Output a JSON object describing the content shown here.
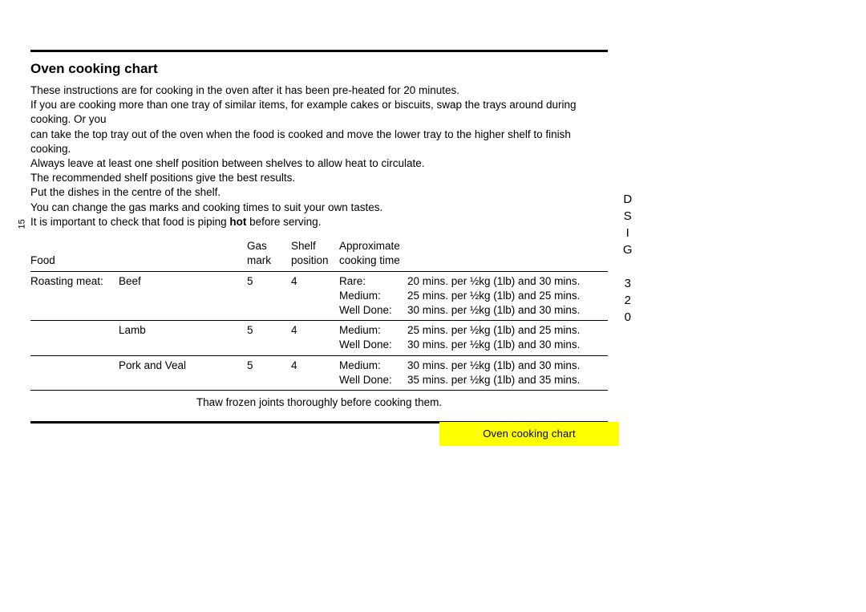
{
  "title": "Oven cooking chart",
  "intro": {
    "line1": "These instructions are for cooking in the oven after it has been pre-heated for 20 minutes.",
    "line2a": "If you are cooking more than one tray of similar items, for example cakes or biscuits, swap the trays around during cooking.  Or you",
    "line2b": "can take the top tray out of the oven when the food is cooked and move the lower tray to the higher shelf to finish cooking.",
    "line3": "Always leave at least one shelf position between shelves to allow heat to circulate.",
    "line4": "The recommended shelf positions give the best results.",
    "line5": "Put the dishes in the centre of the shelf.",
    "line6": "You can change the gas marks and cooking times to suit your own tastes.",
    "line7a": "It is important to check that food is piping ",
    "line7_hot": "hot",
    "line7b": " before serving."
  },
  "table": {
    "headers": {
      "food": "Food",
      "gas_top": "Gas",
      "gas_bottom": "mark",
      "shelf_top": "Shelf",
      "shelf_bottom": "position",
      "time_top": "Approximate",
      "time_bottom": "cooking time"
    },
    "col_widths": {
      "c1": "110px",
      "c2": "160px",
      "c3": "55px",
      "c4": "60px",
      "c5": "85px",
      "c6": "250px"
    },
    "rows": {
      "r1": {
        "cat": "Roasting meat:",
        "item": "Beef",
        "gas": "5",
        "shelf": "4",
        "d1": "Rare:",
        "t1": "20 mins. per ½kg (1lb) and 30 mins.",
        "d2": "Medium:",
        "t2": "25 mins. per ½kg (1lb) and 25 mins.",
        "d3": "Well Done:",
        "t3": "30 mins. per ½kg (1lb) and 30 mins."
      },
      "r2": {
        "item": "Lamb",
        "gas": "5",
        "shelf": "4",
        "d1": "Medium:",
        "t1": "25 mins. per ½kg (1lb) and 25 mins.",
        "d2": "Well Done:",
        "t2": "30 mins. per ½kg (1lb) and 30 mins."
      },
      "r3": {
        "item": "Pork and Veal",
        "gas": "5",
        "shelf": "4",
        "d1": "Medium:",
        "t1": "30 mins. per ½kg (1lb) and 30 mins.",
        "d2": "Well Done:",
        "t2": "35 mins. per ½kg (1lb) and 35 mins."
      }
    },
    "footnote": "Thaw frozen joints thoroughly before cooking them."
  },
  "page_number": "15",
  "model": "DSIG 320",
  "tab_label": "Oven cooking chart",
  "colors": {
    "tab_bg": "#ffff00",
    "text": "#000000",
    "page_bg": "#ffffff"
  }
}
